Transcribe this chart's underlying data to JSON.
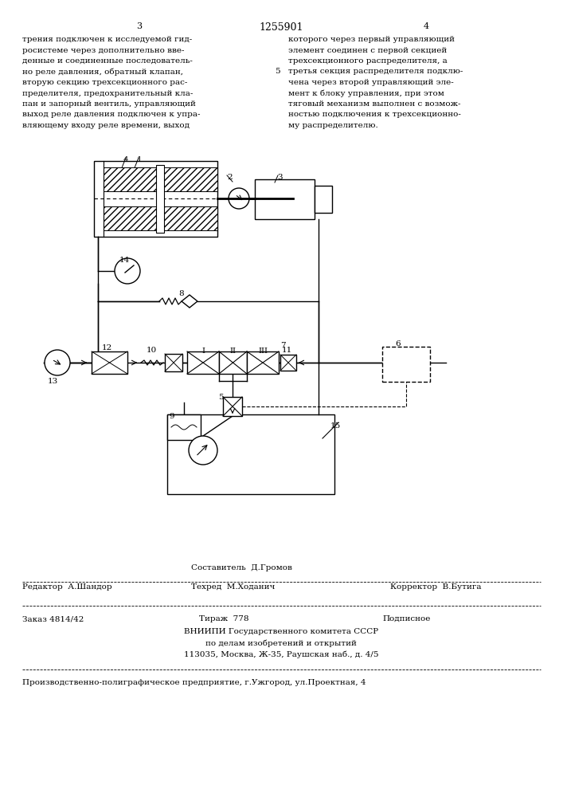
{
  "page_number_left": "3",
  "page_number_center": "1255901",
  "page_number_right": "4",
  "col1_text": "трения подключен к исследуемой гид-\nросистеме через дополнительно вве-\nденные и соединенные последователь-\nно реле давления, обратный клапан,\nвторую секцию трехсекционного рас-\nпределителя, предохранительный кла-\nпан и запорный вентиль, управляющий\nвыход реле давления подключен к упра-\nвляющему входу реле времени, выход",
  "col2_linenum": "5",
  "col2_text": "которого через первый управляющий\nэлемент соединен с первой секцией\nтрехсекционного распределителя, а\nтретья секция распределителя подклю-\nчена через второй управляющий эле-\nмент к блоку управления, при этом\nтяговый механизм выполнен с возмож-\nностью подключения к трехсекционно-\nму распределителю.",
  "editor_label": "Редактор  А.Шандор",
  "composer_label": "Составитель  Д.Громов",
  "techred_label": "Техред  М.Ходанич",
  "corrector_label": "Корректор  В.Бутига",
  "order_label": "Заказ 4814/42",
  "tirazh_label": "Тираж  778",
  "podpisnoe_label": "Подписное",
  "vniip_line1": "ВНИИПИ Государственного комитета СССР",
  "vniip_line2": "по делам изобретений и открытий",
  "vniip_line3": "113035, Москва, Ж-35, Раушская наб., д. 4/5",
  "poligraf_label": "Производственно-полиграфическое предприятие, г.Ужгород, ул.Проектная, 4",
  "bg_color": "#ffffff",
  "text_color": "#000000"
}
